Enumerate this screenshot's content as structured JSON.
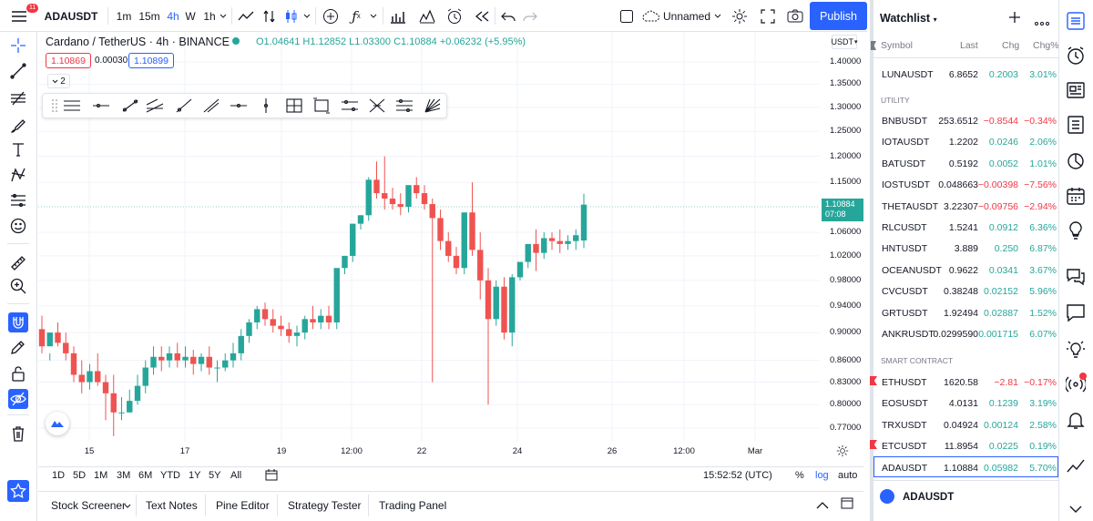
{
  "topbar": {
    "symbol": "ADAUSDT",
    "notification_count": "11",
    "intervals": [
      "1m",
      "15m",
      "4h",
      "W",
      "1h"
    ],
    "active_interval": "4h",
    "layout_name": "Unnamed",
    "publish_label": "Publish"
  },
  "legend": {
    "title": "Cardano / TetherUS · 4h · BINANCE",
    "ohlc": "O1.04641 H1.12852 L1.03300 C1.10884 +0.06232 (+5.95%)",
    "sell_price": "1.10869",
    "spread": "0.00030",
    "buy_price": "1.10899",
    "collapse_count": "2"
  },
  "price_axis": {
    "currency": "USDT",
    "ticks": [
      "1.40000",
      "1.35000",
      "1.30000",
      "1.25000",
      "1.20000",
      "1.15000",
      "1.06000",
      "1.02000",
      "0.98000",
      "0.94000",
      "0.90000",
      "0.86000",
      "0.83000",
      "0.80000",
      "0.77000"
    ],
    "current_price": "1.10884",
    "countdown": "07:08"
  },
  "time_axis": {
    "ticks": [
      "15",
      "17",
      "19",
      "12:00",
      "22",
      "24",
      "26",
      "12:00",
      "Mar"
    ]
  },
  "chart_data": {
    "type": "candlestick",
    "title": "Cardano / TetherUS · 4h · BINANCE",
    "y_axis": "log price",
    "up_color": "#26a69a",
    "down_color": "#ef5350",
    "candles": [
      [
        0.905,
        0.925,
        0.88,
        0.87
      ],
      [
        0.88,
        0.87,
        0.9,
        0.86
      ],
      [
        0.9,
        0.915,
        0.885,
        0.88
      ],
      [
        0.885,
        0.9,
        0.87,
        0.86
      ],
      [
        0.87,
        0.88,
        0.84,
        0.83
      ],
      [
        0.84,
        0.86,
        0.83,
        0.815
      ],
      [
        0.83,
        0.855,
        0.845,
        0.82
      ],
      [
        0.845,
        0.87,
        0.83,
        0.825
      ],
      [
        0.83,
        0.84,
        0.815,
        0.78
      ],
      [
        0.815,
        0.84,
        0.79,
        0.76
      ],
      [
        0.79,
        0.81,
        0.79,
        0.78
      ],
      [
        0.79,
        0.82,
        0.805,
        0.79
      ],
      [
        0.805,
        0.84,
        0.825,
        0.8
      ],
      [
        0.825,
        0.86,
        0.85,
        0.815
      ],
      [
        0.85,
        0.88,
        0.865,
        0.84
      ],
      [
        0.865,
        0.88,
        0.86,
        0.845
      ],
      [
        0.86,
        0.88,
        0.87,
        0.85
      ],
      [
        0.87,
        0.885,
        0.86,
        0.85
      ],
      [
        0.86,
        0.88,
        0.865,
        0.85
      ],
      [
        0.865,
        0.875,
        0.855,
        0.84
      ],
      [
        0.855,
        0.87,
        0.865,
        0.845
      ],
      [
        0.865,
        0.88,
        0.85,
        0.84
      ],
      [
        0.85,
        0.86,
        0.85,
        0.83
      ],
      [
        0.85,
        0.87,
        0.86,
        0.845
      ],
      [
        0.86,
        0.885,
        0.87,
        0.85
      ],
      [
        0.87,
        0.905,
        0.895,
        0.86
      ],
      [
        0.895,
        0.92,
        0.915,
        0.885
      ],
      [
        0.915,
        0.94,
        0.935,
        0.905
      ],
      [
        0.935,
        0.945,
        0.92,
        0.91
      ],
      [
        0.92,
        0.935,
        0.91,
        0.9
      ],
      [
        0.91,
        0.925,
        0.905,
        0.895
      ],
      [
        0.905,
        0.915,
        0.895,
        0.885
      ],
      [
        0.895,
        0.91,
        0.9,
        0.88
      ],
      [
        0.9,
        0.925,
        0.92,
        0.89
      ],
      [
        0.92,
        0.94,
        0.915,
        0.905
      ],
      [
        0.915,
        0.935,
        0.925,
        0.905
      ],
      [
        0.925,
        0.94,
        0.915,
        0.905
      ],
      [
        0.915,
        0.94,
        1.0,
        0.905
      ],
      [
        1.0,
        1.02,
        1.02,
        0.99
      ],
      [
        1.02,
        1.06,
        1.075,
        1.01
      ],
      [
        1.075,
        1.09,
        1.09,
        1.065
      ],
      [
        1.09,
        1.16,
        1.155,
        1.08
      ],
      [
        1.155,
        1.19,
        1.13,
        1.12
      ],
      [
        1.13,
        1.2,
        1.12,
        1.1
      ],
      [
        1.12,
        1.14,
        1.11,
        1.1
      ],
      [
        1.11,
        1.13,
        1.105,
        1.09
      ],
      [
        1.105,
        1.125,
        1.145,
        1.095
      ],
      [
        1.145,
        1.16,
        1.13,
        1.12
      ],
      [
        1.13,
        1.145,
        1.11,
        1.1
      ],
      [
        1.11,
        1.12,
        1.085,
        0.83
      ],
      [
        1.085,
        1.1,
        1.045,
        1.03
      ],
      [
        1.045,
        1.06,
        1.02,
        1.01
      ],
      [
        1.02,
        1.035,
        1.0,
        0.99
      ],
      [
        1.0,
        1.04,
        1.095,
        0.99
      ],
      [
        1.095,
        1.15,
        1.03,
        1.02
      ],
      [
        1.03,
        1.06,
        0.98,
        0.95
      ],
      [
        0.98,
        1.0,
        0.92,
        0.8
      ],
      [
        0.92,
        0.98,
        0.97,
        0.91
      ],
      [
        0.97,
        0.985,
        0.9,
        0.89
      ],
      [
        0.9,
        0.99,
        0.985,
        0.88
      ],
      [
        0.985,
        1.01,
        1.01,
        0.98
      ],
      [
        1.01,
        1.04,
        1.04,
        1.0
      ],
      [
        1.04,
        1.065,
        1.025,
        0.995
      ],
      [
        1.025,
        1.06,
        1.05,
        1.015
      ],
      [
        1.05,
        1.06,
        1.045,
        1.03
      ],
      [
        1.045,
        1.065,
        1.04,
        1.025
      ],
      [
        1.04,
        1.055,
        1.045,
        1.03
      ],
      [
        1.045,
        1.065,
        1.055,
        1.03
      ],
      [
        1.046,
        1.129,
        1.109,
        1.033
      ]
    ]
  },
  "range_bar": {
    "ranges": [
      "1D",
      "5D",
      "1M",
      "3M",
      "6M",
      "YTD",
      "1Y",
      "5Y",
      "All"
    ],
    "time": "15:52:52 (UTC)",
    "percent": "%",
    "log": "log",
    "auto": "auto"
  },
  "panels": [
    "Stock Screener",
    "Text Notes",
    "Pine Editor",
    "Strategy Tester",
    "Trading Panel"
  ],
  "watchlist": {
    "title": "Watchlist",
    "columns": [
      "Symbol",
      "Last",
      "Chg",
      "Chg%"
    ],
    "rows_top": [
      {
        "symbol": "LUNAUSDT",
        "last": "6.8652",
        "chg": "0.2003",
        "pct": "3.01%",
        "dir": "up"
      }
    ],
    "section_utility": "UTILITY",
    "rows_utility": [
      {
        "symbol": "BNBUSDT",
        "last": "253.6512",
        "chg": "−0.8544",
        "pct": "−0.34%",
        "dir": "dn"
      },
      {
        "symbol": "IOTAUSDT",
        "last": "1.2202",
        "chg": "0.0246",
        "pct": "2.06%",
        "dir": "up"
      },
      {
        "symbol": "BATUSDT",
        "last": "0.5192",
        "chg": "0.0052",
        "pct": "1.01%",
        "dir": "up"
      },
      {
        "symbol": "IOSTUSDT",
        "last": "0.048663",
        "chg": "−0.00398",
        "pct": "−7.56%",
        "dir": "dn"
      },
      {
        "symbol": "THETAUSDT",
        "last": "3.22307",
        "chg": "−0.09756",
        "pct": "−2.94%",
        "dir": "dn"
      },
      {
        "symbol": "RLCUSDT",
        "last": "1.5241",
        "chg": "0.0912",
        "pct": "6.36%",
        "dir": "up"
      },
      {
        "symbol": "HNTUSDT",
        "last": "3.889",
        "chg": "0.250",
        "pct": "6.87%",
        "dir": "up"
      },
      {
        "symbol": "OCEANUSDT",
        "last": "0.9622",
        "chg": "0.0341",
        "pct": "3.67%",
        "dir": "up"
      },
      {
        "symbol": "CVCUSDT",
        "last": "0.38248",
        "chg": "0.02152",
        "pct": "5.96%",
        "dir": "up"
      },
      {
        "symbol": "GRTUSDT",
        "last": "1.92494",
        "chg": "0.02887",
        "pct": "1.52%",
        "dir": "up"
      },
      {
        "symbol": "ANKRUSDT",
        "last": "0.0299590",
        "chg": "0.001715",
        "pct": "6.07%",
        "dir": "up"
      }
    ],
    "section_smart": "SMART CONTRACT",
    "rows_smart": [
      {
        "symbol": "ETHUSDT",
        "last": "1620.58",
        "chg": "−2.81",
        "pct": "−0.17%",
        "dir": "dn"
      },
      {
        "symbol": "EOSUSDT",
        "last": "4.0131",
        "chg": "0.1239",
        "pct": "3.19%",
        "dir": "up"
      },
      {
        "symbol": "TRXUSDT",
        "last": "0.04924",
        "chg": "0.00124",
        "pct": "2.58%",
        "dir": "up"
      },
      {
        "symbol": "ETCUSDT",
        "last": "11.8954",
        "chg": "0.0225",
        "pct": "0.19%",
        "dir": "up"
      },
      {
        "symbol": "ADAUSDT",
        "last": "1.10884",
        "chg": "0.05982",
        "pct": "5.70%",
        "dir": "up"
      }
    ],
    "footer_symbol": "ADAUSDT"
  },
  "colors": {
    "accent": "#2962ff",
    "up": "#26a69a",
    "down": "#f23645",
    "grid": "#f0f3fa"
  }
}
